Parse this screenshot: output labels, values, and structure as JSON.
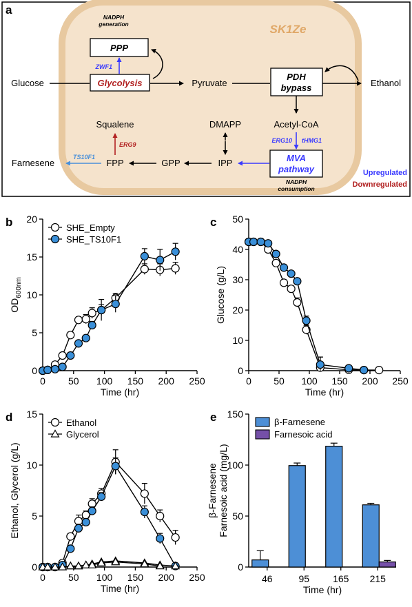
{
  "panel_a": {
    "label": "a",
    "cell_name": "SK1Ze",
    "nadph_generation": [
      "NADPH",
      "generation"
    ],
    "nadph_consumption": [
      "NADPH",
      "consumption"
    ],
    "ppp": "PPP",
    "glycolysis": "Glycolysis",
    "pdh_bypass": [
      "PDH",
      "bypass"
    ],
    "mva_pathway": [
      "MVA",
      "pathway"
    ],
    "metabolites": {
      "glucose": "Glucose",
      "pyruvate": "Pyruvate",
      "ethanol": "Ethanol",
      "acetyl_coa": "Acetyl-CoA",
      "squalene": "Squalene",
      "dmapp": "DMAPP",
      "farnesene": "Farnesene",
      "fpp": "FPP",
      "gpp": "GPP",
      "ipp": "IPP"
    },
    "genes": {
      "zwf1": "ZWF1",
      "erg9": "ERG9",
      "ts10f1": "TS10F1",
      "erg10": "ERG10",
      "thmg1": "tHMG1"
    },
    "legend": {
      "upregulated": "Upregulated",
      "downregulated": "Downregulated"
    },
    "colors": {
      "cell_fill": "#f5e3cc",
      "cell_border": "#e8c9a0",
      "cell_name": "#e0a868",
      "up": "#3b3bff",
      "down": "#b22222",
      "ts10f1": "#4a90d9"
    }
  },
  "chart_data": [
    {
      "panel": "b",
      "type": "line",
      "xlabel": "Time (hr)",
      "ylabel": "OD",
      "ylabel_sub": "600nm",
      "xlim": [
        0,
        250
      ],
      "ylim": [
        0,
        20
      ],
      "xticks": [
        0,
        50,
        100,
        150,
        200,
        250
      ],
      "yticks": [
        0,
        5,
        10,
        15,
        20
      ],
      "legend_position": "top-left",
      "series": [
        {
          "name": "SHE_Empty",
          "marker": "circle",
          "color": "#ffffff",
          "x": [
            0,
            8,
            20,
            32,
            45,
            58,
            70,
            80,
            95,
            118,
            165,
            190,
            215
          ],
          "y": [
            0,
            0.1,
            0.8,
            2.0,
            4.7,
            6.7,
            6.8,
            7.6,
            8.0,
            9.6,
            13.4,
            13.3,
            13.5
          ],
          "err": [
            0,
            0,
            0.2,
            0.3,
            0.4,
            0.4,
            0.6,
            0.7,
            1.4,
            0.6,
            0.7,
            0.8,
            0.8
          ]
        },
        {
          "name": "SHE_TS10F1",
          "marker": "circle",
          "color": "#3a8fd8",
          "x": [
            0,
            8,
            20,
            32,
            45,
            58,
            70,
            80,
            95,
            118,
            165,
            190,
            215
          ],
          "y": [
            0,
            0.1,
            0.2,
            0.5,
            2.0,
            3.6,
            4.3,
            6.0,
            8.0,
            8.8,
            15.1,
            14.6,
            15.7
          ],
          "err": [
            0,
            0,
            0.1,
            0.2,
            0.2,
            0.3,
            0.4,
            0.5,
            0.7,
            1.1,
            1.0,
            1.4,
            1.1
          ]
        }
      ]
    },
    {
      "panel": "c",
      "type": "line",
      "xlabel": "Time (hr)",
      "ylabel": "Glucose (g/L)",
      "xlim": [
        0,
        250
      ],
      "ylim": [
        0,
        50
      ],
      "xticks": [
        0,
        50,
        100,
        150,
        200,
        250
      ],
      "yticks": [
        0,
        10,
        20,
        30,
        40,
        50
      ],
      "series": [
        {
          "marker": "circle",
          "color": "#ffffff",
          "x": [
            0,
            8,
            20,
            32,
            45,
            58,
            70,
            80,
            95,
            118,
            165,
            190,
            215
          ],
          "y": [
            42.5,
            42.5,
            42.5,
            40.0,
            35.5,
            29.0,
            27.0,
            22.5,
            13.5,
            1.0,
            0.3,
            0.2,
            0.2
          ],
          "err": [
            0,
            0,
            0,
            0.5,
            0.8,
            1.0,
            1.0,
            1.5,
            1.5,
            3.5,
            0.3,
            0,
            0
          ]
        },
        {
          "marker": "circle",
          "color": "#3a8fd8",
          "x": [
            0,
            8,
            20,
            32,
            45,
            58,
            70,
            80,
            95,
            118,
            165,
            190
          ],
          "y": [
            42.5,
            42.5,
            42.5,
            42.0,
            38.5,
            34.0,
            32.0,
            29.5,
            16.5,
            2.0,
            0.8,
            0.2
          ],
          "err": [
            0,
            0,
            0,
            0.3,
            0.5,
            0.8,
            0.8,
            1.0,
            1.5,
            2.5,
            0.5,
            0
          ]
        }
      ]
    },
    {
      "panel": "d",
      "type": "line",
      "xlabel": "Time (hr)",
      "ylabel": "Ethanol, Glycerol (g/L)",
      "xlim": [
        0,
        250
      ],
      "ylim": [
        0,
        15
      ],
      "xticks": [
        0,
        50,
        100,
        150,
        200,
        250
      ],
      "yticks": [
        0,
        5,
        10,
        15
      ],
      "legend_position": "top-left",
      "series": [
        {
          "name": "Ethanol",
          "marker": "circle",
          "color": "#ffffff",
          "x": [
            0,
            8,
            20,
            32,
            45,
            58,
            70,
            80,
            95,
            118,
            165,
            190,
            215
          ],
          "y": [
            0,
            0,
            0,
            0.4,
            3.0,
            4.5,
            5.1,
            6.2,
            7.2,
            10.3,
            7.2,
            5.0,
            2.9
          ],
          "err": [
            0,
            0,
            0,
            0.1,
            0.3,
            0.6,
            0.4,
            0.5,
            0.5,
            1.2,
            1.0,
            0.6,
            0.7
          ]
        },
        {
          "marker": "circle",
          "color": "#3a8fd8",
          "x": [
            0,
            8,
            20,
            32,
            45,
            58,
            70,
            80,
            95,
            118,
            165,
            190,
            215
          ],
          "y": [
            0,
            0,
            0,
            0.2,
            1.8,
            3.8,
            4.4,
            5.5,
            6.9,
            9.9,
            5.4,
            2.8,
            0.1
          ],
          "err": [
            0,
            0,
            0,
            0.1,
            0.2,
            0.4,
            0.3,
            0.4,
            0.4,
            0.8,
            0.6,
            0.5,
            0.1
          ]
        },
        {
          "name": "Glycerol",
          "marker": "triangle",
          "color": "#ffffff",
          "x": [
            0,
            8,
            20,
            32,
            45,
            58,
            70,
            80,
            95,
            118,
            165,
            190,
            215
          ],
          "y": [
            0,
            0,
            0,
            0,
            0.1,
            0.1,
            0.2,
            0.3,
            0.5,
            0.6,
            0.4,
            0.2,
            0.1
          ],
          "err": [
            0,
            0,
            0,
            0,
            0,
            0,
            0,
            0,
            0,
            0,
            0,
            0,
            0
          ]
        },
        {
          "marker": "triangle",
          "color": "#ffffff",
          "x": [
            45,
            58,
            70,
            80,
            95,
            118,
            165,
            190
          ],
          "y": [
            0.1,
            0.1,
            0.2,
            0.2,
            0.4,
            0.5,
            0.3,
            0.1
          ],
          "err": [
            0,
            0,
            0,
            0,
            0,
            0,
            0,
            0
          ]
        }
      ]
    },
    {
      "panel": "e",
      "type": "bar",
      "xlabel": "Time (hr)",
      "ylabel": [
        "β-Farnesene",
        "Farnesoic acid (mg/L)"
      ],
      "categories": [
        "46",
        "95",
        "165",
        "215"
      ],
      "ylim": [
        0,
        150
      ],
      "yticks": [
        0,
        50,
        100,
        150
      ],
      "legend_position": "top-left",
      "series": [
        {
          "name": "β-Farnesene",
          "color": "#4d8fd6",
          "values": [
            7,
            99.5,
            118.5,
            61
          ],
          "err": [
            9,
            2.5,
            3,
            1.5
          ]
        },
        {
          "name": "Farnesoic acid",
          "color": "#7550a8",
          "values": [
            null,
            null,
            null,
            5
          ],
          "err": [
            null,
            null,
            null,
            1.5
          ]
        }
      ]
    }
  ]
}
